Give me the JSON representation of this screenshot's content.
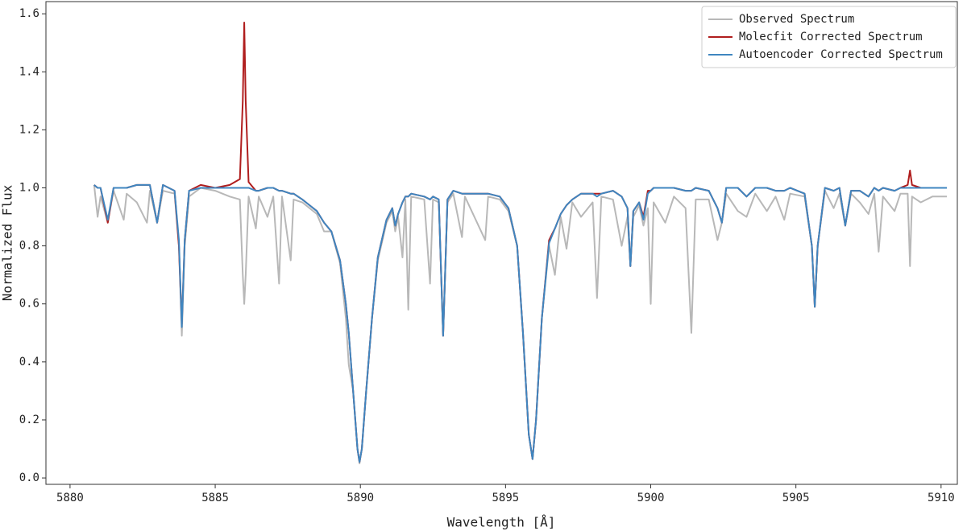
{
  "chart_data": {
    "type": "line",
    "xlabel": "Wavelength [Å]",
    "ylabel": "Normalized Flux",
    "xlim": [
      5879.17,
      5910.56
    ],
    "ylim": [
      -0.022,
      1.642
    ],
    "xticks": [
      5880,
      5885,
      5890,
      5895,
      5900,
      5905,
      5910
    ],
    "yticks": [
      {
        "value": 0,
        "label": "0.0"
      },
      0.2,
      0.4,
      0.6,
      0.8,
      {
        "value": 1,
        "label": "1.0"
      },
      1.2,
      1.4,
      1.6
    ],
    "legend": "upper right",
    "grid": false,
    "x": [
      5880.83,
      5880.95,
      5881.05,
      5881.3,
      5881.5,
      5881.85,
      5881.95,
      5882.3,
      5882.65,
      5882.75,
      5883.0,
      5883.2,
      5883.6,
      5883.75,
      5883.85,
      5883.95,
      5884.1,
      5884.5,
      5885.0,
      5885.5,
      5885.85,
      5885.95,
      5886.0,
      5886.05,
      5886.15,
      5886.4,
      5886.5,
      5886.8,
      5887.0,
      5887.2,
      5887.3,
      5887.6,
      5887.7,
      5888.0,
      5888.5,
      5888.75,
      5889.0,
      5889.3,
      5889.5,
      5889.6,
      5889.75,
      5889.9,
      5889.97,
      5890.05,
      5890.2,
      5890.4,
      5890.6,
      5890.9,
      5891.1,
      5891.2,
      5891.3,
      5891.45,
      5891.55,
      5891.65,
      5891.75,
      5892.2,
      5892.4,
      5892.5,
      5892.7,
      5892.85,
      5893.0,
      5893.2,
      5893.5,
      5893.6,
      5894.3,
      5894.4,
      5894.8,
      5895.1,
      5895.4,
      5895.6,
      5895.8,
      5895.93,
      5896.05,
      5896.25,
      5896.5,
      5896.7,
      5896.9,
      5897.1,
      5897.3,
      5897.6,
      5898.0,
      5898.15,
      5898.3,
      5898.7,
      5899.0,
      5899.2,
      5899.3,
      5899.4,
      5899.6,
      5899.75,
      5899.9,
      5900.0,
      5900.1,
      5900.5,
      5900.8,
      5901.2,
      5901.4,
      5901.55,
      5902.0,
      5902.3,
      5902.45,
      5902.6,
      5903.0,
      5903.3,
      5903.6,
      5904.0,
      5904.3,
      5904.6,
      5904.8,
      5905.3,
      5905.55,
      5905.65,
      5905.75,
      5906.0,
      5906.3,
      5906.5,
      5906.7,
      5906.9,
      5907.2,
      5907.5,
      5907.7,
      5907.85,
      5908.0,
      5908.4,
      5908.6,
      5908.85,
      5908.93,
      5909.0,
      5909.3,
      5909.7,
      5910.2
    ],
    "series": [
      {
        "name": "Observed Spectrum",
        "color": "#b8b8b8",
        "values": [
          1.01,
          0.9,
          0.97,
          0.88,
          0.99,
          0.89,
          0.98,
          0.95,
          0.88,
          0.99,
          0.88,
          0.99,
          0.98,
          0.8,
          0.49,
          0.8,
          0.97,
          1.0,
          0.99,
          0.97,
          0.96,
          0.7,
          0.6,
          0.7,
          0.97,
          0.86,
          0.97,
          0.9,
          0.97,
          0.67,
          0.97,
          0.75,
          0.96,
          0.95,
          0.91,
          0.85,
          0.85,
          0.74,
          0.55,
          0.39,
          0.3,
          0.1,
          0.05,
          0.1,
          0.3,
          0.55,
          0.75,
          0.88,
          0.92,
          0.85,
          0.9,
          0.76,
          0.96,
          0.58,
          0.97,
          0.96,
          0.67,
          0.96,
          0.95,
          0.49,
          0.95,
          0.98,
          0.83,
          0.97,
          0.82,
          0.97,
          0.96,
          0.92,
          0.8,
          0.5,
          0.15,
          0.065,
          0.2,
          0.55,
          0.8,
          0.7,
          0.9,
          0.79,
          0.95,
          0.9,
          0.95,
          0.62,
          0.97,
          0.96,
          0.8,
          0.9,
          0.73,
          0.9,
          0.94,
          0.87,
          0.93,
          0.6,
          0.95,
          0.88,
          0.97,
          0.93,
          0.5,
          0.96,
          0.96,
          0.82,
          0.88,
          0.98,
          0.92,
          0.9,
          0.98,
          0.92,
          0.97,
          0.89,
          0.98,
          0.97,
          0.8,
          0.59,
          0.8,
          0.99,
          0.93,
          0.98,
          0.87,
          0.98,
          0.95,
          0.91,
          0.98,
          0.78,
          0.97,
          0.92,
          0.98,
          0.98,
          0.73,
          0.97,
          0.95,
          0.97,
          0.97
        ]
      },
      {
        "name": "Molecfit Corrected Spectrum",
        "color": "#b01e1e",
        "values": [
          1.01,
          1.0,
          1.0,
          0.88,
          1.0,
          1.0,
          1.0,
          1.01,
          1.01,
          1.01,
          0.88,
          1.01,
          0.99,
          0.8,
          0.53,
          0.82,
          0.99,
          1.01,
          1.0,
          1.01,
          1.03,
          1.3,
          1.57,
          1.3,
          1.02,
          0.99,
          0.99,
          1.0,
          1.0,
          0.99,
          0.99,
          0.98,
          0.98,
          0.96,
          0.92,
          0.88,
          0.85,
          0.75,
          0.6,
          0.5,
          0.3,
          0.1,
          0.055,
          0.1,
          0.3,
          0.55,
          0.76,
          0.89,
          0.93,
          0.87,
          0.91,
          0.95,
          0.97,
          0.97,
          0.98,
          0.97,
          0.96,
          0.97,
          0.96,
          0.49,
          0.96,
          0.99,
          0.98,
          0.98,
          0.98,
          0.98,
          0.97,
          0.93,
          0.8,
          0.5,
          0.15,
          0.065,
          0.2,
          0.55,
          0.82,
          0.86,
          0.91,
          0.94,
          0.96,
          0.98,
          0.98,
          0.98,
          0.98,
          0.99,
          0.97,
          0.93,
          0.73,
          0.92,
          0.95,
          0.9,
          0.99,
          0.99,
          1.0,
          1.0,
          1.0,
          0.99,
          0.99,
          1.0,
          0.99,
          0.93,
          0.88,
          1.0,
          1.0,
          0.97,
          1.0,
          1.0,
          0.99,
          0.99,
          1.0,
          0.98,
          0.8,
          0.59,
          0.8,
          1.0,
          0.99,
          1.0,
          0.87,
          0.99,
          0.99,
          0.97,
          1.0,
          0.99,
          1.0,
          0.99,
          1.0,
          1.01,
          1.06,
          1.01,
          1.0,
          1.0,
          1.0
        ]
      },
      {
        "name": "Autoencoder Corrected Spectrum",
        "color": "#3f86c0",
        "values": [
          1.01,
          1.0,
          1.0,
          0.89,
          1.0,
          1.0,
          1.0,
          1.01,
          1.01,
          1.01,
          0.88,
          1.01,
          0.99,
          0.82,
          0.52,
          0.82,
          0.99,
          1.0,
          1.0,
          1.0,
          1.0,
          1.0,
          1.0,
          1.0,
          1.0,
          0.99,
          0.99,
          1.0,
          1.0,
          0.99,
          0.99,
          0.98,
          0.98,
          0.96,
          0.92,
          0.88,
          0.85,
          0.75,
          0.6,
          0.5,
          0.3,
          0.1,
          0.055,
          0.1,
          0.3,
          0.55,
          0.76,
          0.89,
          0.93,
          0.87,
          0.91,
          0.95,
          0.97,
          0.97,
          0.98,
          0.97,
          0.96,
          0.97,
          0.96,
          0.49,
          0.96,
          0.99,
          0.98,
          0.98,
          0.98,
          0.98,
          0.97,
          0.93,
          0.8,
          0.5,
          0.15,
          0.065,
          0.2,
          0.55,
          0.81,
          0.86,
          0.91,
          0.94,
          0.96,
          0.98,
          0.98,
          0.97,
          0.98,
          0.99,
          0.97,
          0.93,
          0.73,
          0.92,
          0.95,
          0.89,
          0.98,
          0.99,
          1.0,
          1.0,
          1.0,
          0.99,
          0.99,
          1.0,
          0.99,
          0.93,
          0.88,
          1.0,
          1.0,
          0.97,
          1.0,
          1.0,
          0.99,
          0.99,
          1.0,
          0.98,
          0.8,
          0.59,
          0.8,
          1.0,
          0.99,
          1.0,
          0.87,
          0.99,
          0.99,
          0.97,
          1.0,
          0.99,
          1.0,
          0.99,
          1.0,
          1.0,
          1.0,
          1.0,
          1.0,
          1.0,
          1.0
        ]
      }
    ]
  }
}
